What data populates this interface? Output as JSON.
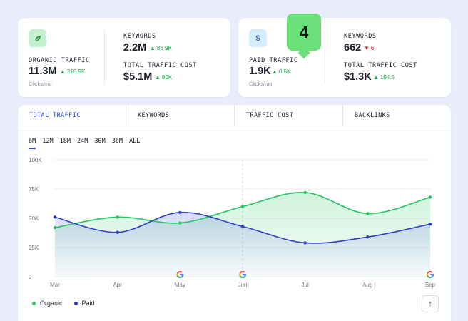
{
  "organic_card": {
    "label": "ORGANIC TRAFFIC",
    "value": "11.3M",
    "delta": "215.9K",
    "sub": "Clicks/mo",
    "keywords_label": "KEYWORDS",
    "keywords_value": "2.2M",
    "keywords_delta": "86.9K",
    "cost_label": "TOTAL TRAFFIC COST",
    "cost_value": "$5.1M",
    "cost_delta": "80K"
  },
  "paid_card": {
    "icon_text": "$",
    "label": "PAID TRAFFIC",
    "value": "1.9K",
    "delta": "0.5K",
    "sub": "Clicks/mo",
    "keywords_label": "KEYWORDS",
    "keywords_value": "662",
    "keywords_delta": "6",
    "cost_label": "TOTAL TRAFFIC COST",
    "cost_value": "$1.3K",
    "cost_delta": "194.5"
  },
  "badge": {
    "number": "4"
  },
  "tabs": [
    "TOTAL TRAFFIC",
    "KEYWORDS",
    "TRAFFIC COST",
    "BACKLINKS"
  ],
  "ranges": [
    "6M",
    "12M",
    "18M",
    "24M",
    "30M",
    "36M",
    "ALL"
  ],
  "legend": {
    "organic": "Organic",
    "paid": "Paid"
  },
  "colors": {
    "organic": "#22c55e",
    "paid": "#2f3fc9",
    "accent": "#2f49c8"
  },
  "icons": {
    "leaf": "leaf-icon",
    "dollar": "dollar-icon",
    "google": "google-icon",
    "arrow_up": "arrow-up-icon"
  },
  "chart_data": {
    "type": "area",
    "categories": [
      "Mar",
      "Apr",
      "May",
      "Jun",
      "Jul",
      "Aug",
      "Sep"
    ],
    "y_ticks": [
      "0",
      "25K",
      "50K",
      "75K",
      "100K"
    ],
    "ylim": [
      0,
      100000
    ],
    "series": [
      {
        "name": "Organic",
        "values": [
          42000,
          51000,
          46000,
          60000,
          72000,
          54000,
          68000
        ]
      },
      {
        "name": "Paid",
        "values": [
          51000,
          38000,
          55000,
          43000,
          29000,
          34000,
          45000
        ]
      }
    ],
    "google_markers": [
      "May",
      "Jun",
      "Sep"
    ],
    "highlight_category": "Jun",
    "grid": true,
    "legend_position": "bottom-left"
  }
}
